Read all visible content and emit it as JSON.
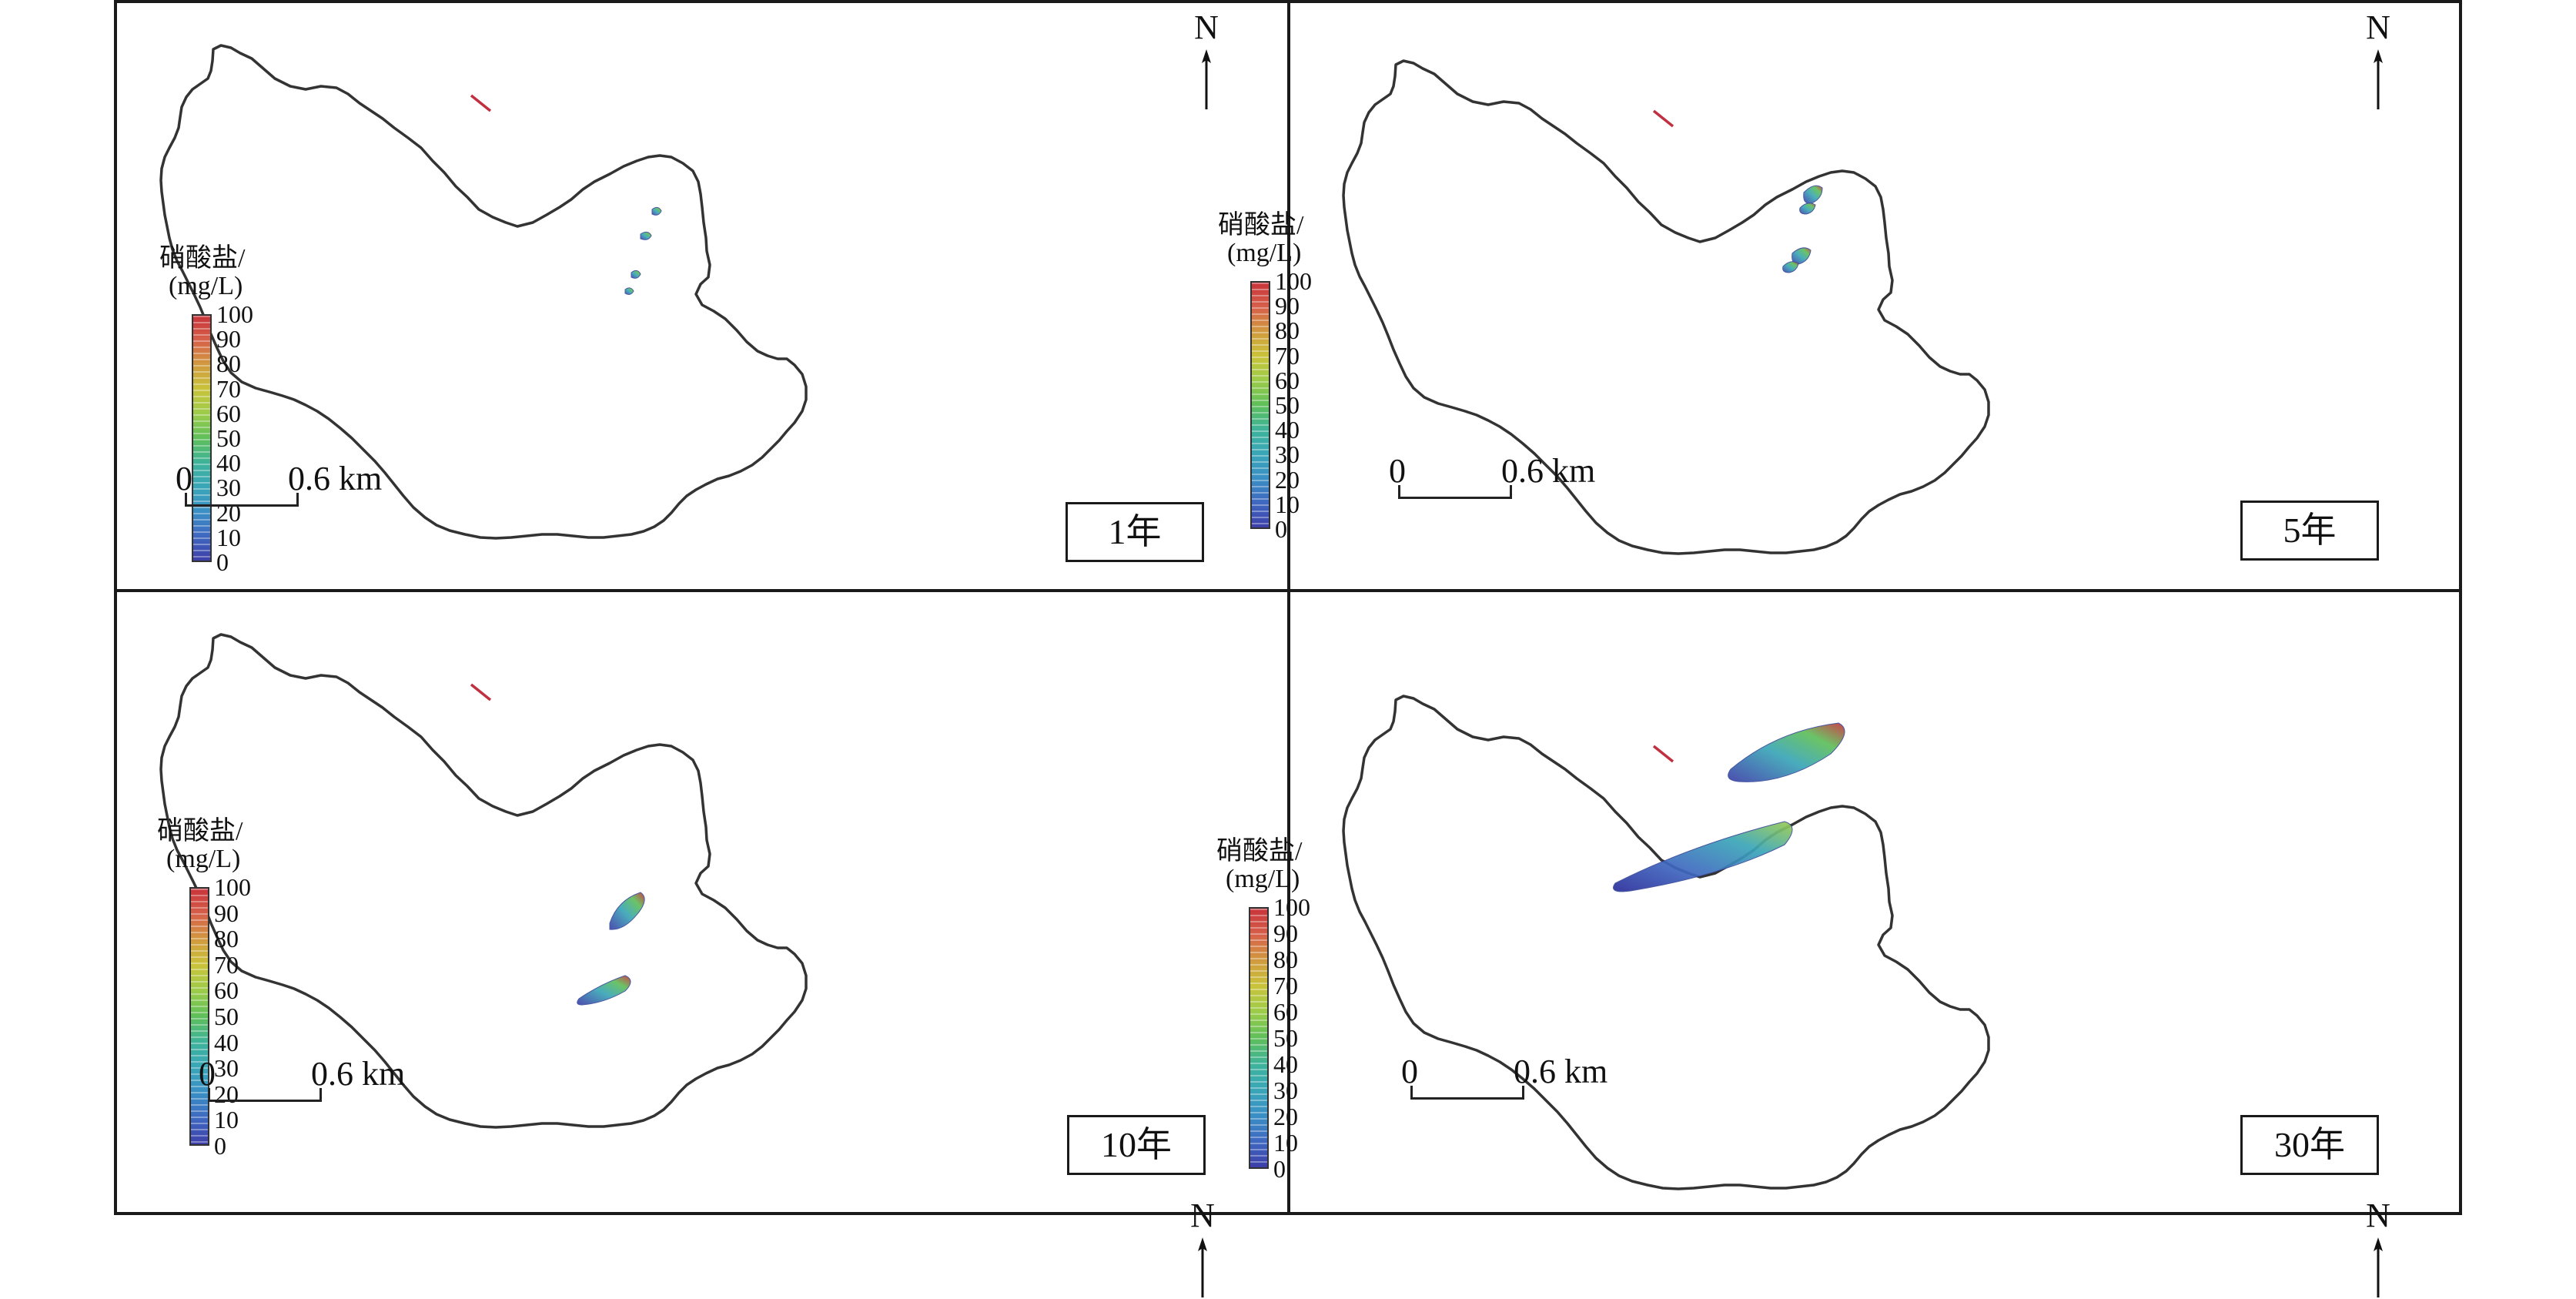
{
  "legend": {
    "title": "硝酸盐/",
    "unit": "(mg/L)",
    "ticks": [
      "100",
      "90",
      "80",
      "70",
      "60",
      "50",
      "40",
      "30",
      "20",
      "10",
      "0"
    ]
  },
  "north_label": "N",
  "scale": {
    "zero": "0",
    "distance": "0.6 km"
  },
  "panels": [
    {
      "time_label": "1年"
    },
    {
      "time_label": "5年"
    },
    {
      "time_label": "10年"
    },
    {
      "time_label": "30年"
    }
  ],
  "colors": {
    "boundary": "#333333",
    "boundary_accent": "#c03040",
    "high": "#c8333a",
    "low": "#3d3fa8"
  },
  "icons": [
    "north-arrow-icon"
  ]
}
